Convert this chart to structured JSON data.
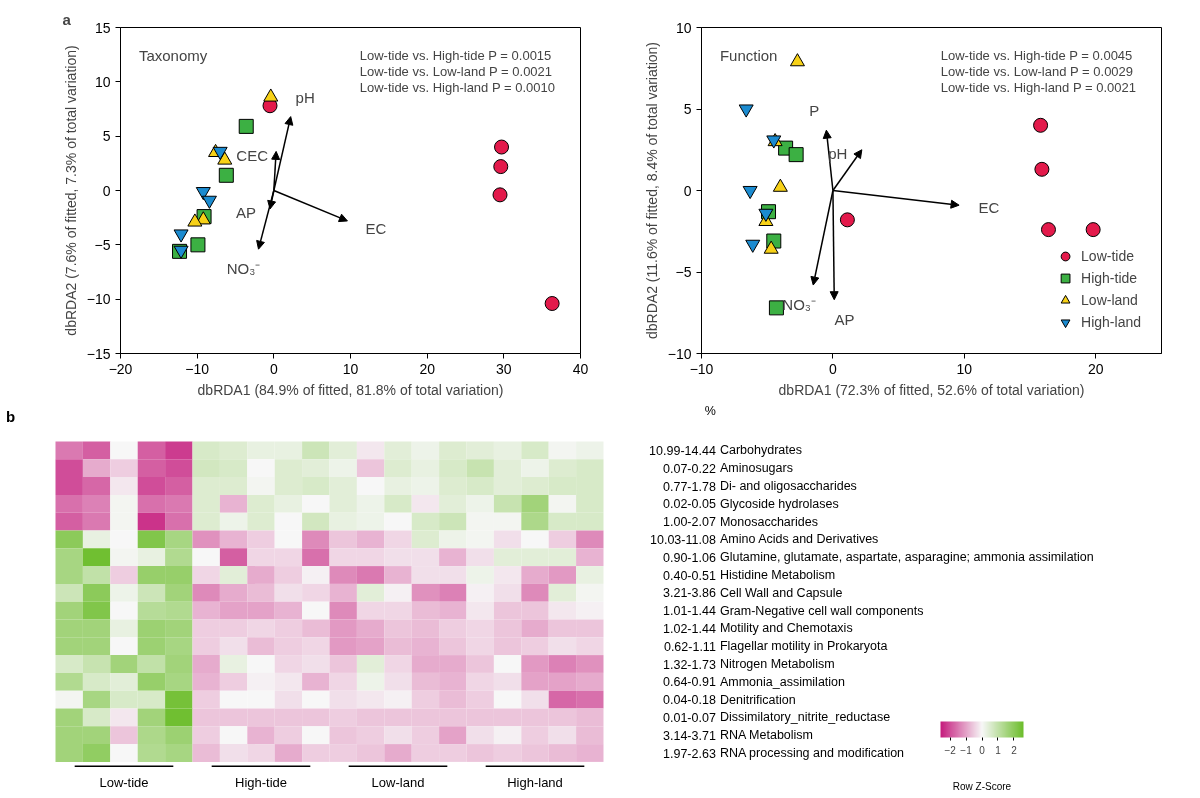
{
  "chart_data": [
    {
      "type": "scatter",
      "title": "Taxonomy",
      "xlabel": "dbRDA1 (84.9% of fitted, 81.8% of total variation)",
      "ylabel": "dbRDA2 (7.6% of fitted, 7.3% of total variation)",
      "annotations": [
        "a",
        "Low-tide vs. High-tide P = 0.0015",
        "Low-tide vs. Low-land P = 0.0021",
        "Low-tide vs. High-land P = 0.0010",
        "pH",
        "CEC",
        "AP",
        "EC",
        "NO₃⁻"
      ],
      "xlim": [
        -20,
        40
      ],
      "ylim": [
        -15,
        15
      ],
      "xticks": [
        -20,
        -10,
        0,
        10,
        20,
        30,
        40
      ],
      "yticks": [
        -15,
        -10,
        -5,
        0,
        5,
        10,
        15
      ],
      "series": [
        {
          "color": "#e31a4b",
          "marker": "circle",
          "x": [
            -0.5,
            29.7,
            29.6,
            29.5,
            36.3
          ],
          "values": [
            7.8,
            4.0,
            2.2,
            -0.4,
            -10.4
          ]
        },
        {
          "color": "#3cb043",
          "marker": "square",
          "x": [
            -3.6,
            -6.2,
            -9.1,
            -9.9,
            -12.3
          ],
          "values": [
            5.9,
            1.4,
            -2.4,
            -5.0,
            -5.6
          ]
        },
        {
          "color": "#f7d117",
          "marker": "triangle",
          "x": [
            -0.4,
            -7.6,
            -6.4,
            -9.2,
            -10.3
          ],
          "values": [
            8.6,
            3.5,
            2.8,
            -2.7,
            -2.9
          ]
        },
        {
          "color": "#1b8bd0",
          "x": [
            -7.0,
            -9.2,
            -8.4,
            -12.1,
            -12.1
          ],
          "values": [
            3.6,
            -0.1,
            -0.9,
            -4.0,
            -5.5
          ]
        }
      ]
    },
    {
      "type": "scatter",
      "title": "Function",
      "xlabel": "dbRDA1 (72.3% of fitted, 52.6% of total variation)",
      "ylabel": "dbRDA2 (11.6% of fitted, 8.4% of total variation)",
      "annotations": [
        "Low-tide vs. High-tide P = 0.0045",
        "Low-tide vs. Low-land P = 0.0029",
        "Low-tide vs. High-land P = 0.0021",
        "P",
        "pH",
        "EC",
        "NO₃⁻",
        "AP"
      ],
      "xlim": [
        -10,
        25
      ],
      "ylim": [
        -10,
        10
      ],
      "xticks": [
        -10,
        0,
        10,
        20
      ],
      "yticks": [
        -10,
        -5,
        0,
        5,
        10
      ],
      "legend": "bottom right",
      "series": [
        {
          "name": "Low-tide",
          "color": "#e31a4b",
          "marker": "circle",
          "x": [
            15.8,
            15.9,
            16.4,
            19.8,
            1.1
          ],
          "values": [
            4.0,
            1.3,
            -2.4,
            -2.4,
            -1.8
          ]
        },
        {
          "name": "High-tide",
          "color": "#3cb043",
          "marker": "square",
          "x": [
            -3.6,
            -2.8,
            -4.9,
            -4.5,
            -4.3
          ],
          "values": [
            2.6,
            2.2,
            -1.3,
            -3.1,
            -7.2
          ]
        },
        {
          "name": "Low-land",
          "color": "#f7d117",
          "marker": "triangle",
          "x": [
            -2.7,
            -4.4,
            -4.0,
            -5.1,
            -4.7
          ],
          "values": [
            7.9,
            3.0,
            0.2,
            -1.9,
            -3.6
          ]
        },
        {
          "name": "High-land",
          "color": "#1b8bd0",
          "x": [
            -6.6,
            -4.5,
            -6.3,
            -5.1,
            -6.1
          ],
          "values": [
            5.0,
            3.1,
            0.0,
            -1.4,
            -3.3
          ]
        }
      ]
    },
    {
      "type": "heatmap",
      "clabel": "Row Z-Score",
      "clim": [
        -2.6,
        2.6
      ],
      "cticks": [
        -2,
        -1,
        0,
        1,
        2
      ],
      "annotations": [
        "b",
        "%",
        "Low-tide",
        "High-tide",
        "Low-land",
        "High-land"
      ],
      "categories": [
        null,
        null,
        null,
        null,
        null,
        null,
        null,
        null,
        null,
        null,
        null,
        null,
        null,
        null,
        null,
        null,
        null,
        null,
        null,
        null
      ],
      "y_categories": [
        "Carbohydrates",
        "Aminosugars",
        "Di- and oligosaccharides",
        "Glycoside hydrolases",
        "Monosaccharides",
        "Amino Acids and Derivatives",
        "Glutamine, glutamate, aspartate, asparagine; ammonia assimilation",
        "Histidine Metabolism",
        "Cell Wall and Capsule",
        "Gram-Negative cell wall components",
        "Motility and Chemotaxis",
        "Flagellar motility in Prokaryota",
        "Nitrogen Metabolism",
        "Ammonia_assimilation",
        "Denitrification",
        "Dissimilatory_nitrite_reductase",
        "RNA Metabolism",
        "RNA processing and modification"
      ],
      "y2_categories": [
        "10.99-14.44",
        "0.07-0.22",
        "0.77-1.78",
        "0.02-0.05",
        "1.00-2.07",
        "10.03-11.08",
        "0.90-1.06",
        "0.40-0.51",
        "3.21-3.86",
        "1.01-1.44",
        "1.02-1.44",
        "0.62-1.11",
        "1.32-1.73",
        "0.64-0.91",
        "0.04-0.18",
        "0.01-0.07",
        "3.14-3.71",
        "1.97-2.63"
      ],
      "cells": [
        [
          -1.5,
          -1.8,
          0.0,
          -1.8,
          -2.2,
          0.6,
          0.5,
          0.3,
          0.3,
          0.8,
          0.4,
          -0.2,
          0.4,
          0.2,
          0.5,
          0.4,
          0.3,
          0.6,
          0.1,
          0.2
        ],
        [
          -2.0,
          -0.9,
          -0.5,
          -1.8,
          -2.0,
          0.7,
          0.6,
          0.0,
          0.5,
          0.4,
          0.2,
          -0.6,
          0.5,
          0.3,
          0.6,
          0.9,
          0.4,
          0.2,
          0.5,
          0.6
        ],
        [
          -2.0,
          -1.7,
          -0.2,
          -2.0,
          -1.8,
          0.5,
          0.5,
          0.1,
          0.5,
          0.6,
          0.4,
          0.0,
          0.3,
          0.2,
          0.5,
          0.6,
          0.4,
          0.5,
          0.6,
          0.6
        ],
        [
          -1.6,
          -1.4,
          0.1,
          -1.6,
          -1.5,
          0.5,
          -0.8,
          0.5,
          0.3,
          0.0,
          0.4,
          0.2,
          0.6,
          -0.2,
          0.4,
          0.2,
          0.9,
          1.6,
          0.1,
          0.6
        ],
        [
          -1.8,
          -1.5,
          0.1,
          -2.3,
          -1.6,
          0.5,
          0.2,
          0.5,
          0.0,
          0.7,
          0.3,
          0.2,
          0.0,
          0.6,
          0.8,
          0.1,
          0.1,
          1.4,
          0.6,
          0.6
        ],
        [
          2.0,
          0.3,
          0.0,
          2.2,
          1.5,
          -1.2,
          -0.8,
          -0.5,
          0.0,
          -1.3,
          -0.6,
          -0.8,
          -0.4,
          0.5,
          0.2,
          0.1,
          -0.3,
          0.0,
          -0.5,
          -1.3
        ],
        [
          1.5,
          2.5,
          0.1,
          0.3,
          1.3,
          0.0,
          -1.8,
          -0.4,
          -0.4,
          -1.6,
          -0.4,
          -0.4,
          -0.3,
          -0.3,
          -0.8,
          -0.3,
          0.4,
          0.4,
          0.4,
          -0.8
        ],
        [
          1.5,
          1.0,
          -0.5,
          1.8,
          1.8,
          -0.4,
          0.4,
          -0.9,
          -0.5,
          -0.1,
          -1.3,
          -1.5,
          -0.8,
          -0.3,
          -0.3,
          0.2,
          -0.2,
          -0.9,
          -1.1,
          0.3
        ],
        [
          0.8,
          2.0,
          0.2,
          0.8,
          1.6,
          -1.3,
          -0.9,
          -0.7,
          -0.3,
          -0.4,
          -0.8,
          0.4,
          -0.1,
          -1.2,
          -1.4,
          -0.1,
          -0.3,
          -1.3,
          0.4,
          0.1
        ],
        [
          1.6,
          2.2,
          0.0,
          1.2,
          1.3,
          -0.8,
          -1.0,
          -1.0,
          -0.8,
          0.0,
          -1.3,
          -0.4,
          -0.4,
          -0.7,
          -0.8,
          -0.2,
          -0.6,
          -0.6,
          -0.2,
          -0.1
        ],
        [
          1.6,
          1.6,
          0.3,
          1.7,
          1.6,
          -0.5,
          -0.5,
          -0.4,
          -0.5,
          -0.7,
          -1.1,
          -0.9,
          -0.6,
          -0.7,
          -0.5,
          -0.4,
          -0.6,
          -0.9,
          -0.6,
          -0.6
        ],
        [
          1.6,
          1.6,
          0.0,
          1.7,
          1.5,
          -0.5,
          -0.3,
          -0.7,
          -0.5,
          -0.4,
          -1.1,
          -1.0,
          -0.7,
          -0.8,
          -0.6,
          -0.4,
          -0.6,
          -0.5,
          -0.3,
          -0.4
        ],
        [
          0.6,
          0.9,
          1.6,
          1.0,
          1.6,
          -0.9,
          0.3,
          0.0,
          -0.4,
          -0.3,
          -0.6,
          0.4,
          -0.4,
          -0.9,
          -0.9,
          -0.6,
          0.0,
          -1.1,
          -1.4,
          -1.2
        ],
        [
          1.3,
          0.6,
          0.4,
          1.8,
          1.5,
          -0.8,
          -0.5,
          -0.1,
          -0.2,
          -0.8,
          -0.4,
          0.2,
          -0.3,
          -0.7,
          -0.8,
          -0.4,
          -0.3,
          -1.0,
          -1.0,
          -0.9
        ],
        [
          0.1,
          1.5,
          0.6,
          0.6,
          2.4,
          -0.5,
          0.0,
          0.0,
          -0.3,
          0.0,
          -0.3,
          -0.2,
          -0.1,
          -0.5,
          -0.7,
          -0.5,
          0.0,
          -0.3,
          -1.7,
          -1.6
        ],
        [
          1.6,
          0.6,
          -0.2,
          1.6,
          2.5,
          -0.6,
          -0.6,
          -0.6,
          -0.6,
          -0.6,
          -0.5,
          -0.6,
          -0.6,
          -0.6,
          -0.6,
          -0.6,
          -0.6,
          -0.6,
          -0.6,
          -0.7
        ],
        [
          1.6,
          1.6,
          -0.6,
          1.4,
          1.7,
          -0.5,
          0.0,
          -0.8,
          -0.5,
          0.0,
          -0.6,
          -0.5,
          -0.3,
          -0.5,
          -1.0,
          -0.3,
          -0.1,
          -0.5,
          -0.3,
          -0.7
        ],
        [
          1.6,
          1.9,
          0.0,
          1.3,
          1.5,
          -0.7,
          -0.3,
          -0.4,
          -0.9,
          -0.5,
          -0.5,
          -0.6,
          -0.9,
          -0.5,
          -0.5,
          -0.6,
          -0.5,
          -0.6,
          -0.7,
          -0.8
        ]
      ]
    }
  ]
}
